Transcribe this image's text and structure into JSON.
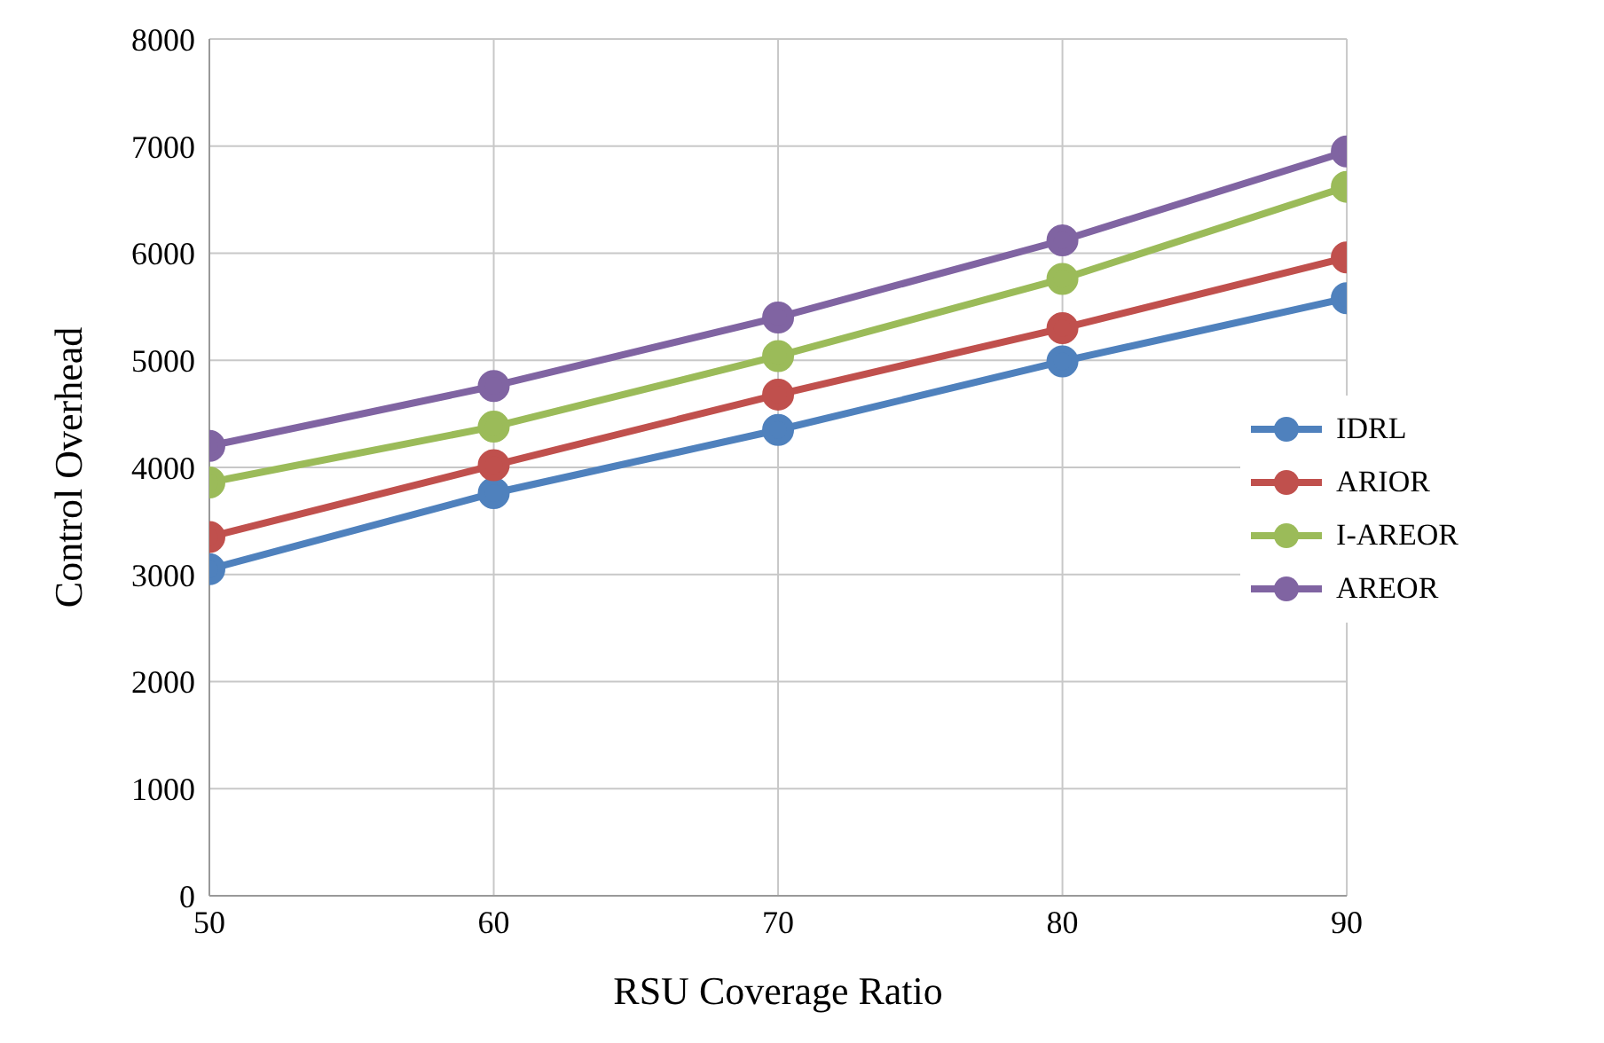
{
  "chart_data": {
    "type": "line",
    "xlabel": "RSU Coverage Ratio",
    "ylabel": "Control Overhead",
    "x": [
      50,
      60,
      70,
      80,
      90
    ],
    "series": [
      {
        "name": "IDRL",
        "color": "#4f81bd",
        "values": [
          3050,
          3760,
          4350,
          4990,
          5580
        ]
      },
      {
        "name": "ARIOR",
        "color": "#c0504d",
        "values": [
          3350,
          4020,
          4680,
          5300,
          5960
        ]
      },
      {
        "name": "I-AREOR",
        "color": "#9bbb59",
        "values": [
          3860,
          4380,
          5040,
          5760,
          6620
        ]
      },
      {
        "name": "AREOR",
        "color": "#8064a2",
        "values": [
          4200,
          4760,
          5400,
          6120,
          6950
        ]
      }
    ],
    "xlim": [
      50,
      90
    ],
    "xticks": [
      50,
      60,
      70,
      80,
      90
    ],
    "ylim": [
      0,
      8000
    ],
    "yticks": [
      0,
      1000,
      2000,
      3000,
      4000,
      5000,
      6000,
      7000,
      8000
    ],
    "grid": true,
    "legend": "right",
    "marker": "circle",
    "line_style": "solid"
  }
}
